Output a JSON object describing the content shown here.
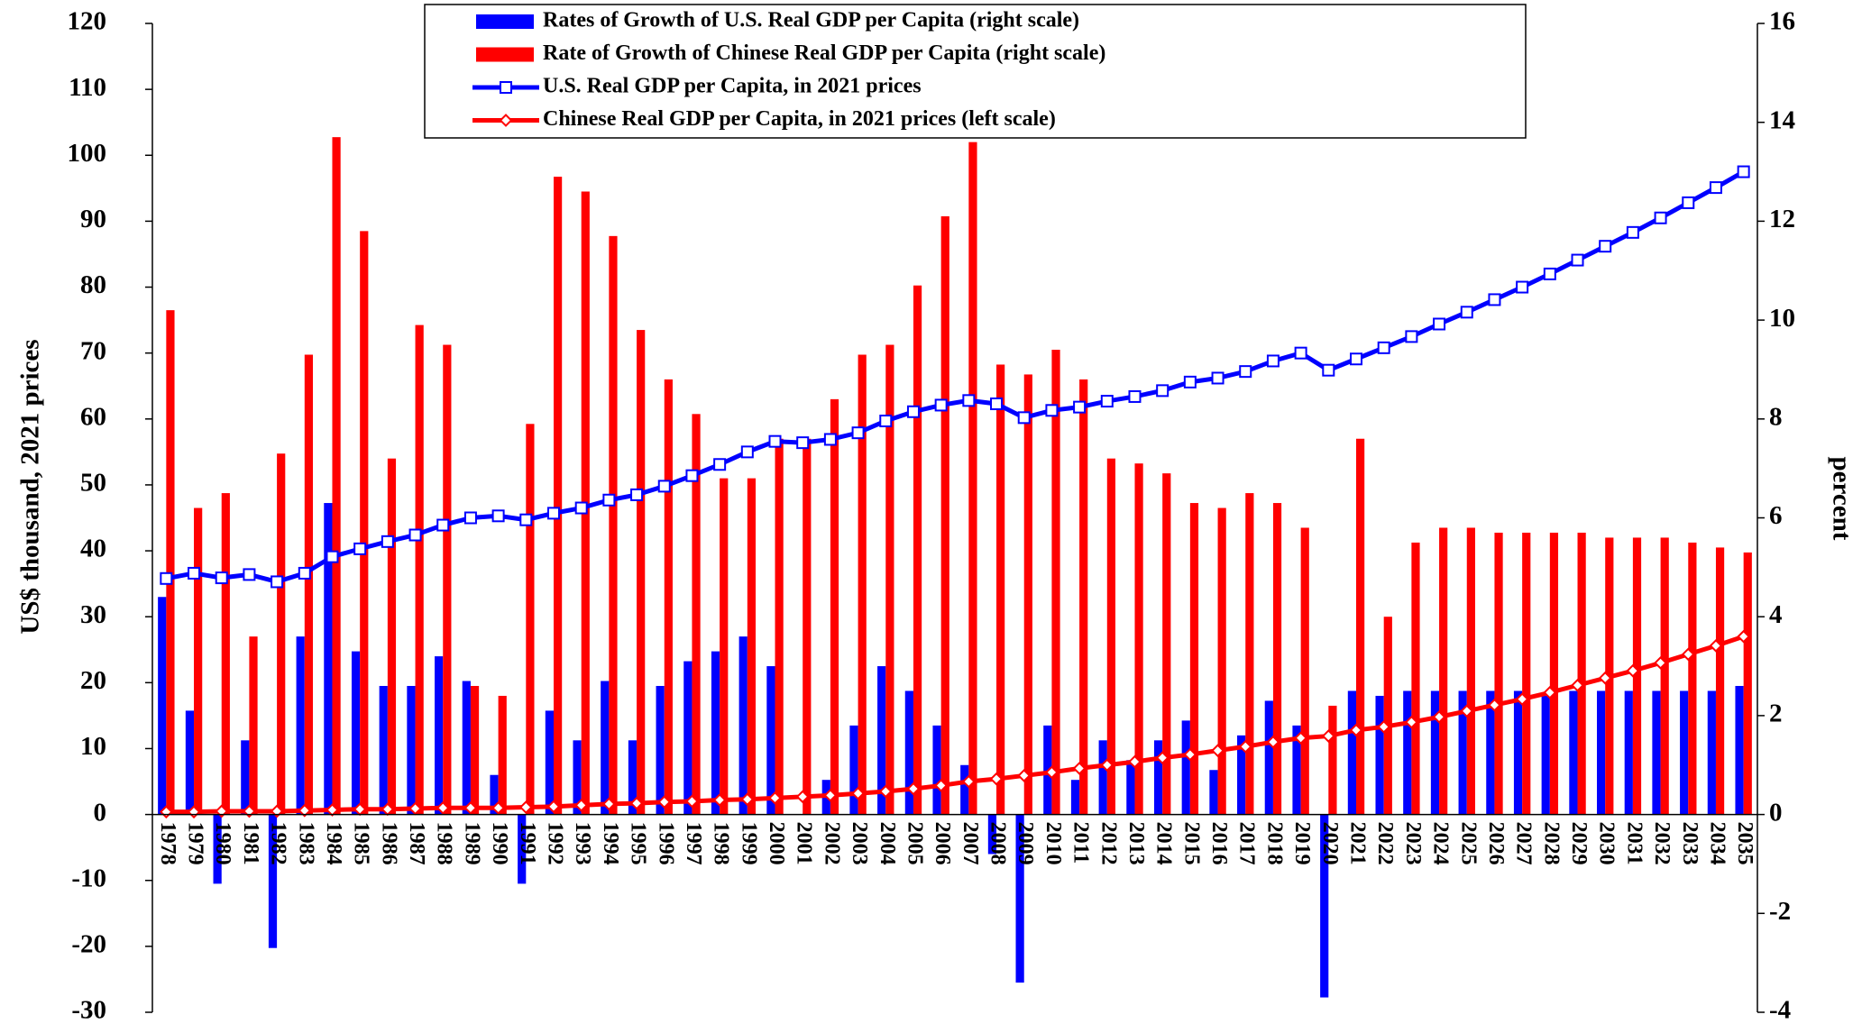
{
  "chart_data": {
    "type": "bar",
    "ylabel": "US$ thousand, 2021 prices",
    "y2label": "percent",
    "categories": [
      "1978",
      "1979",
      "1980",
      "1981",
      "1982",
      "1983",
      "1984",
      "1985",
      "1986",
      "1987",
      "1988",
      "1989",
      "1990",
      "1991",
      "1992",
      "1993",
      "1994",
      "1995",
      "1996",
      "1997",
      "1998",
      "1999",
      "2000",
      "2001",
      "2002",
      "2003",
      "2004",
      "2005",
      "2006",
      "2007",
      "2008",
      "2009",
      "2010",
      "2011",
      "2012",
      "2013",
      "2014",
      "2015",
      "2016",
      "2017",
      "2018",
      "2019",
      "2020",
      "2021",
      "2022",
      "2023",
      "2024",
      "2025",
      "2026",
      "2027",
      "2028",
      "2029",
      "2030",
      "2031",
      "2032",
      "2033",
      "2034",
      "2035"
    ],
    "ylim": [
      -30,
      120
    ],
    "yticks": [
      -30,
      -20,
      -10,
      0,
      10,
      20,
      30,
      40,
      50,
      60,
      70,
      80,
      90,
      100,
      110,
      120
    ],
    "y2lim": [
      -4,
      16
    ],
    "y2ticks": [
      -4,
      -2,
      0,
      2,
      4,
      6,
      8,
      10,
      12,
      14,
      16
    ],
    "series": [
      {
        "name": "Rates of Growth of U.S. Real GDP per Capita (right scale)",
        "type": "bar",
        "axis": "y2",
        "color": "#0000ff",
        "values": [
          4.4,
          2.1,
          -1.4,
          1.5,
          -2.7,
          3.6,
          6.3,
          3.3,
          2.6,
          2.6,
          3.2,
          2.7,
          0.8,
          -1.4,
          2.1,
          1.5,
          2.7,
          1.5,
          2.6,
          3.1,
          3.3,
          3.6,
          3.0,
          0.0,
          0.7,
          1.8,
          3.0,
          2.5,
          1.8,
          1.0,
          -0.8,
          -3.4,
          1.8,
          0.7,
          1.5,
          1.1,
          1.5,
          1.9,
          0.9,
          1.6,
          2.3,
          1.8,
          -3.7,
          2.5,
          2.4,
          2.5,
          2.5,
          2.5,
          2.5,
          2.5,
          2.4,
          2.5,
          2.5,
          2.5,
          2.5,
          2.5,
          2.5,
          2.6
        ]
      },
      {
        "name": "Rate of Growth of Chinese Real GDP per Capita (right scale)",
        "type": "bar",
        "axis": "y2",
        "color": "#ff0000",
        "values": [
          10.2,
          6.2,
          6.5,
          3.6,
          7.3,
          9.3,
          13.7,
          11.8,
          7.2,
          9.9,
          9.5,
          2.6,
          2.4,
          7.9,
          12.9,
          12.6,
          11.7,
          9.8,
          8.8,
          8.1,
          6.8,
          6.8,
          7.6,
          7.6,
          8.4,
          9.3,
          9.5,
          10.7,
          12.1,
          13.6,
          9.1,
          8.9,
          9.4,
          8.8,
          7.2,
          7.1,
          6.9,
          6.3,
          6.2,
          6.5,
          6.3,
          5.8,
          2.2,
          7.6,
          4.0,
          5.5,
          5.8,
          5.8,
          5.7,
          5.7,
          5.7,
          5.7,
          5.6,
          5.6,
          5.6,
          5.5,
          5.4,
          5.3
        ]
      },
      {
        "name": "U.S. Real GDP per Capita, in 2021 prices",
        "type": "line",
        "color": "#0000ff",
        "marker": "square",
        "values": [
          35.8,
          36.6,
          35.9,
          36.4,
          35.3,
          36.6,
          39.1,
          40.3,
          41.4,
          42.4,
          43.9,
          45.0,
          45.3,
          44.7,
          45.7,
          46.5,
          47.7,
          48.5,
          49.8,
          51.4,
          53.1,
          55.0,
          56.6,
          56.4,
          56.9,
          57.9,
          59.7,
          61.1,
          62.1,
          62.8,
          62.3,
          60.2,
          61.3,
          61.8,
          62.7,
          63.4,
          64.3,
          65.6,
          66.2,
          67.2,
          68.8,
          70.0,
          67.4,
          69.1,
          70.8,
          72.5,
          74.4,
          76.2,
          78.1,
          80.0,
          82.0,
          84.1,
          86.2,
          88.3,
          90.5,
          92.8,
          95.1,
          97.5
        ]
      },
      {
        "name": "Chinese Real GDP per Capita, in 2021 prices (left scale)",
        "type": "line",
        "color": "#ff0000",
        "marker": "diamond",
        "values": [
          0.4,
          0.4,
          0.5,
          0.5,
          0.5,
          0.6,
          0.7,
          0.8,
          0.8,
          0.9,
          1.0,
          1.0,
          1.0,
          1.1,
          1.2,
          1.4,
          1.6,
          1.7,
          1.9,
          2.0,
          2.2,
          2.3,
          2.5,
          2.7,
          2.9,
          3.2,
          3.5,
          3.9,
          4.4,
          5.0,
          5.4,
          5.9,
          6.4,
          7.0,
          7.5,
          8.0,
          8.6,
          9.1,
          9.7,
          10.3,
          11.0,
          11.6,
          11.9,
          12.8,
          13.3,
          14.0,
          14.8,
          15.7,
          16.6,
          17.5,
          18.5,
          19.6,
          20.7,
          21.8,
          23.0,
          24.3,
          25.6,
          27.0
        ]
      }
    ]
  }
}
